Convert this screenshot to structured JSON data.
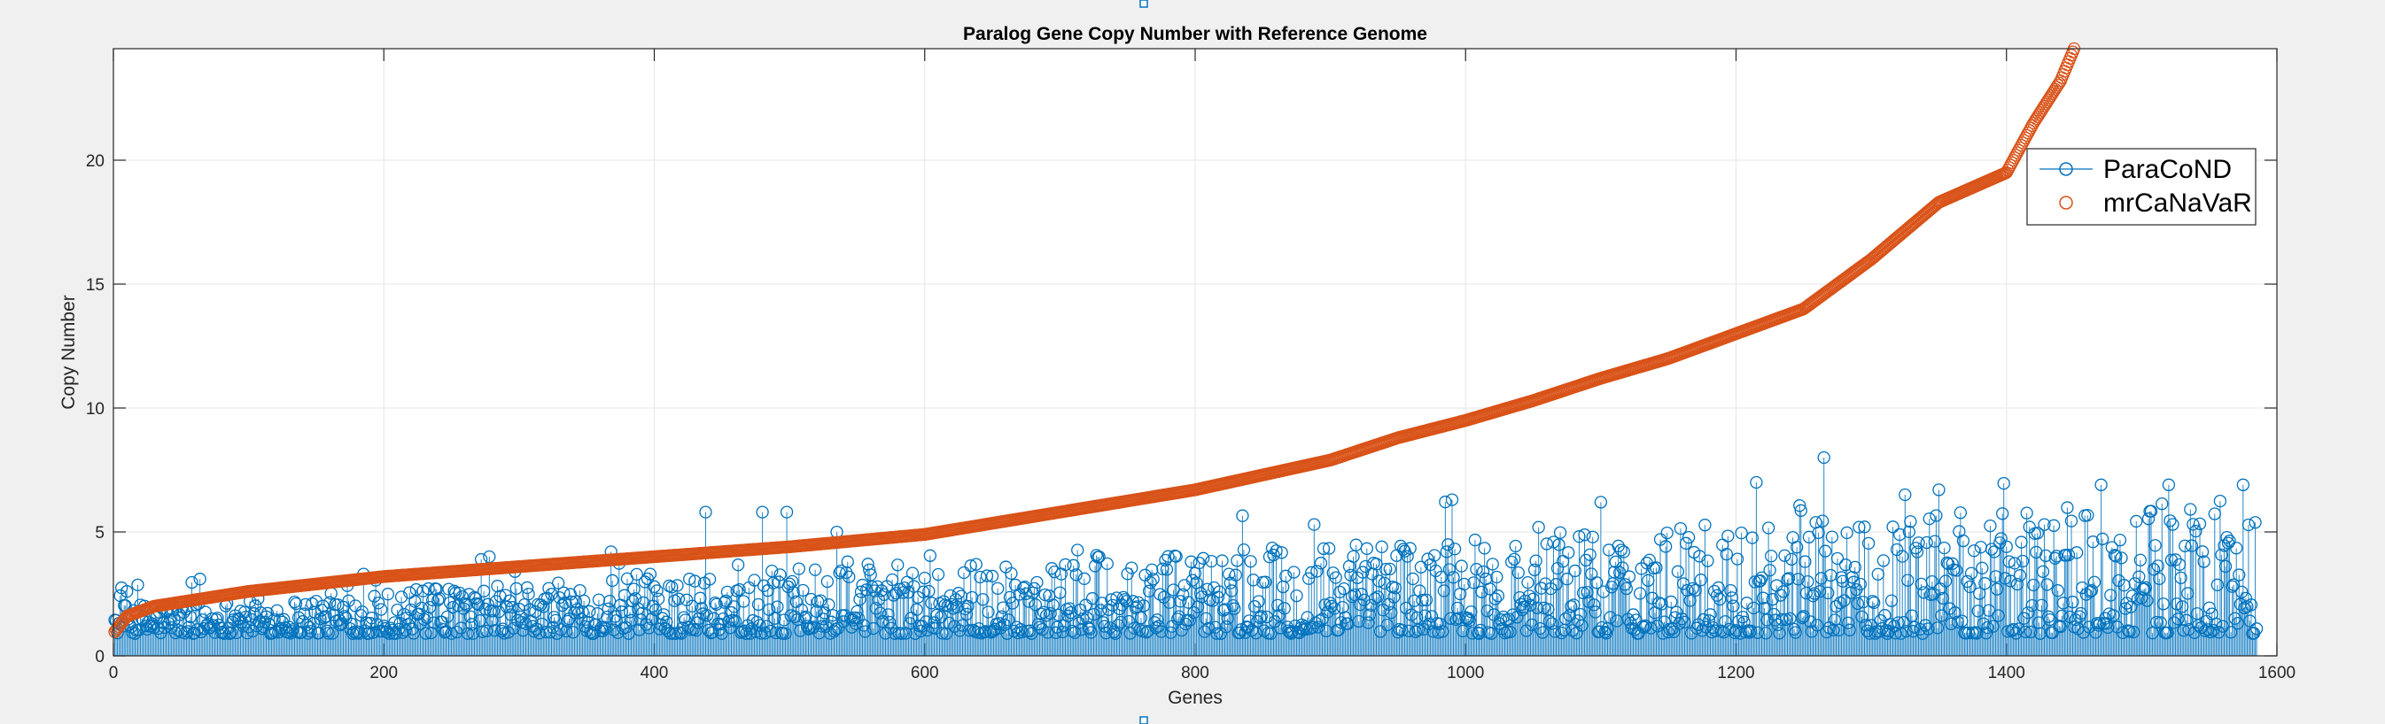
{
  "chart_data": {
    "type": "scatter",
    "title": "Paralog Gene Copy Number with Reference Genome",
    "xlabel": "Genes",
    "ylabel": "Copy Number",
    "xlim": [
      0,
      1600
    ],
    "ylim": [
      0,
      24.5
    ],
    "xticks": [
      0,
      200,
      400,
      600,
      800,
      1000,
      1200,
      1400,
      1600
    ],
    "yticks": [
      0,
      5,
      10,
      15,
      20
    ],
    "grid": true,
    "legend_position": "top-right",
    "series": [
      {
        "name": "ParaCoND",
        "kind": "stem",
        "color": "#0072BD",
        "n_points": 1585,
        "description_of_values": "noisy values mostly between 1 and 3 near low x, increasing to 1-7 near high x; max about 8 near x=1265",
        "peaks": [
          [
            10,
            2.6
          ],
          [
            64,
            3.1
          ],
          [
            185,
            3.3
          ],
          [
            278,
            4.0
          ],
          [
            368,
            4.2
          ],
          [
            438,
            5.8
          ],
          [
            480,
            5.8
          ],
          [
            498,
            5.8
          ],
          [
            888,
            5.3
          ],
          [
            990,
            6.3
          ],
          [
            1100,
            6.2
          ],
          [
            1215,
            7.0
          ],
          [
            1265,
            8.0
          ],
          [
            1325,
            6.5
          ],
          [
            1350,
            6.7
          ],
          [
            1470,
            6.9
          ],
          [
            1520,
            6.9
          ],
          [
            1575,
            6.9
          ]
        ]
      },
      {
        "name": "mrCaNaVaR",
        "kind": "markers",
        "color": "#D95319",
        "n_points": 1450,
        "sorted_curve": [
          [
            0,
            0.9
          ],
          [
            10,
            1.6
          ],
          [
            30,
            2.0
          ],
          [
            100,
            2.6
          ],
          [
            200,
            3.2
          ],
          [
            300,
            3.6
          ],
          [
            400,
            4.0
          ],
          [
            500,
            4.4
          ],
          [
            600,
            4.9
          ],
          [
            700,
            5.8
          ],
          [
            800,
            6.7
          ],
          [
            900,
            7.9
          ],
          [
            950,
            8.8
          ],
          [
            1000,
            9.5
          ],
          [
            1050,
            10.3
          ],
          [
            1100,
            11.2
          ],
          [
            1150,
            12.0
          ],
          [
            1200,
            13.0
          ],
          [
            1250,
            14.0
          ],
          [
            1300,
            16.0
          ],
          [
            1350,
            18.3
          ],
          [
            1400,
            19.5
          ],
          [
            1420,
            21.5
          ],
          [
            1440,
            23.2
          ],
          [
            1450,
            24.5
          ]
        ]
      }
    ]
  }
}
